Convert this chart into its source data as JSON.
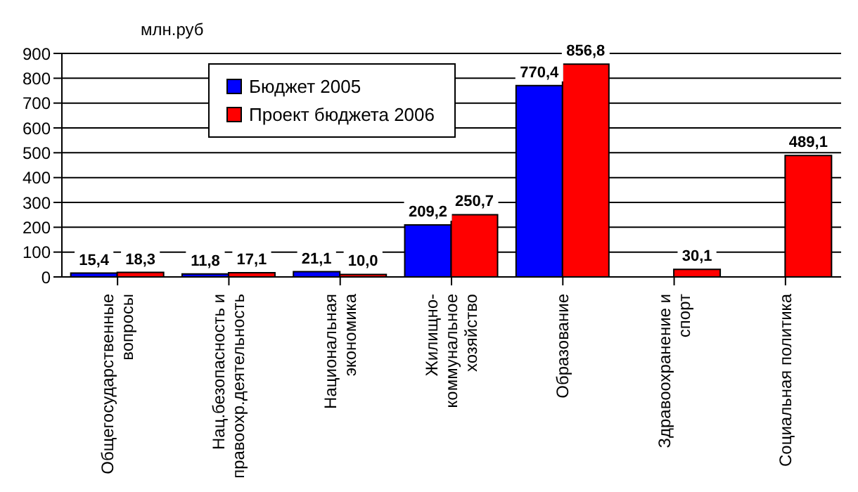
{
  "chart_data": {
    "type": "bar",
    "ylabel": "млн.руб",
    "categories": [
      "Общегосударственные вопросы",
      "Нац.безопасность и правоохр.деятельность",
      "Национальная экономика",
      "Жилищно-коммунальное хозяйство",
      "Образование",
      "Здравоохранение и спорт",
      "Социальная политика"
    ],
    "series": [
      {
        "name": "Бюджет 2005",
        "color": "#0000ff",
        "values": [
          15.4,
          11.8,
          21.1,
          209.2,
          770.4,
          null,
          null
        ],
        "value_labels": [
          "15,4",
          "11,8",
          "21,1",
          "209,2",
          "770,4",
          null,
          null
        ]
      },
      {
        "name": "Проект бюджета 2006",
        "color": "#ff0000",
        "values": [
          18.3,
          17.1,
          10.0,
          250.7,
          856.8,
          30.1,
          489.1
        ],
        "value_labels": [
          "18,3",
          "17,1",
          "10,0",
          "250,7",
          "856,8",
          "30,1",
          "489,1"
        ]
      }
    ],
    "ylim": [
      0,
      900
    ],
    "yticks": [
      0,
      100,
      200,
      300,
      400,
      500,
      600,
      700,
      800,
      900
    ],
    "grid": "y",
    "legend": "top left"
  }
}
